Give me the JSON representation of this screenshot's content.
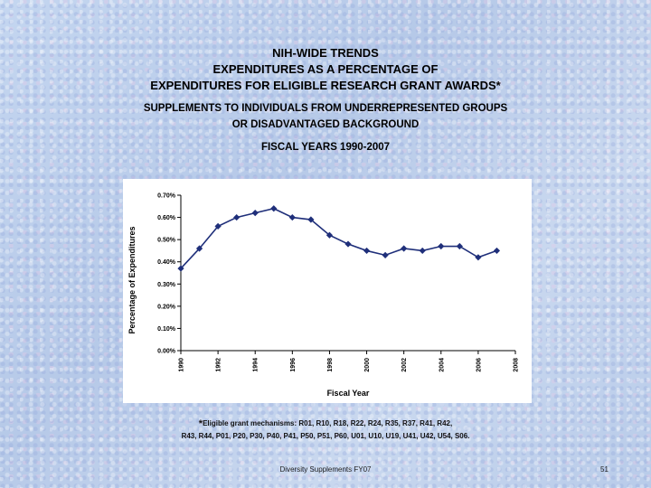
{
  "title_lines": [
    "NIH-WIDE TRENDS",
    "EXPENDITURES AS A PERCENTAGE OF",
    "EXPENDITURES FOR ELIGIBLE RESEARCH GRANT AWARDS*"
  ],
  "subtitle_lines": [
    "SUPPLEMENTS TO INDIVIDUALS FROM UNDERREPRESENTED GROUPS",
    "OR DISADVANTAGED BACKGROUND"
  ],
  "period_label": "FISCAL YEARS 1990-2007",
  "footnote": {
    "star": "*",
    "line1": "Eligible grant mechanisms: R01, R10, R18, R22, R24, R35, R37, R41, R42,",
    "line2": "R43, R44, P01, P20, P30, P40, P41, P50, P51, P60, U01, U10, U19, U41, U42, U54, S06."
  },
  "footer": {
    "center": "Diversity Supplements FY07",
    "page": "51"
  },
  "chart_data": {
    "type": "line",
    "xlabel": "Fiscal Year",
    "ylabel": "Percentage of Expenditures",
    "x": [
      1990,
      1991,
      1992,
      1993,
      1994,
      1995,
      1996,
      1997,
      1998,
      1999,
      2000,
      2001,
      2002,
      2003,
      2004,
      2005,
      2006,
      2007
    ],
    "y": [
      0.37,
      0.46,
      0.56,
      0.6,
      0.62,
      0.64,
      0.6,
      0.59,
      0.52,
      0.48,
      0.45,
      0.43,
      0.46,
      0.45,
      0.47,
      0.47,
      0.42,
      0.45
    ],
    "ylim": [
      0,
      0.7
    ],
    "y_ticks": [
      "0.00%",
      "0.10%",
      "0.20%",
      "0.30%",
      "0.40%",
      "0.50%",
      "0.60%",
      "0.70%"
    ],
    "x_ticks": [
      "1990",
      "1992",
      "1994",
      "1996",
      "1998",
      "2000",
      "2002",
      "2004",
      "2006",
      "2008"
    ],
    "xlim": [
      1990,
      2008
    ],
    "grid": false,
    "line_color": "#1f2f7a",
    "marker": "diamond"
  }
}
